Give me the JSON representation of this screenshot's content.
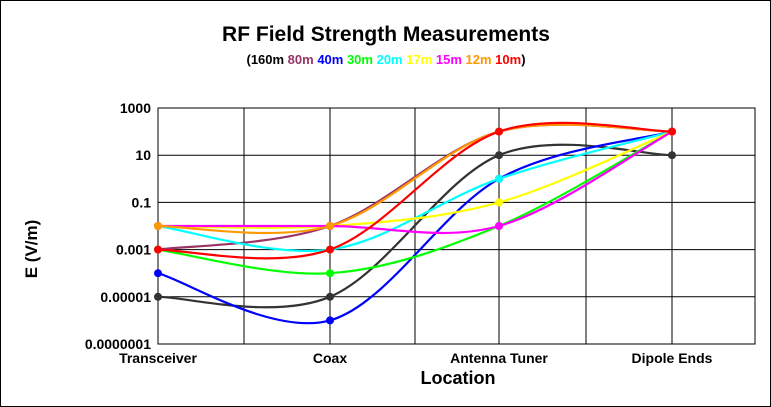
{
  "chart_data": {
    "type": "line",
    "title": "RF Field Strength Measurements",
    "xlabel": "Location",
    "ylabel": "E (V/m)",
    "y_scale": "log",
    "ylim": [
      1e-07,
      1000
    ],
    "y_ticks": [
      "1000",
      "10",
      "0.1",
      "0.001",
      "0.00001",
      "0.0000001"
    ],
    "categories": [
      "Transceiver",
      "Coax",
      "Antenna Tuner",
      "Dipole Ends"
    ],
    "grid": true,
    "legend": "top-center",
    "legend_open": "(",
    "legend_close": ")",
    "series": [
      {
        "name": "160m",
        "color": "#333333",
        "values": [
          1e-05,
          1e-05,
          10,
          10
        ]
      },
      {
        "name": "80m",
        "color": "#993366",
        "values": [
          0.001,
          0.01,
          100,
          100
        ]
      },
      {
        "name": "40m",
        "color": "#0000ff",
        "values": [
          0.0001,
          1e-06,
          1,
          100
        ]
      },
      {
        "name": "30m",
        "color": "#00ff00",
        "values": [
          0.001,
          0.0001,
          0.01,
          100
        ]
      },
      {
        "name": "20m",
        "color": "#00ffff",
        "values": [
          0.01,
          0.001,
          1,
          100
        ]
      },
      {
        "name": "17m",
        "color": "#ffff00",
        "values": [
          0.01,
          0.01,
          0.1,
          100
        ]
      },
      {
        "name": "15m",
        "color": "#ff00ff",
        "values": [
          0.01,
          0.01,
          0.01,
          100
        ]
      },
      {
        "name": "12m",
        "color": "#ff9900",
        "values": [
          0.01,
          0.01,
          100,
          100
        ]
      },
      {
        "name": "10m",
        "color": "#ff0000",
        "values": [
          0.001,
          0.001,
          100,
          100
        ]
      }
    ]
  }
}
